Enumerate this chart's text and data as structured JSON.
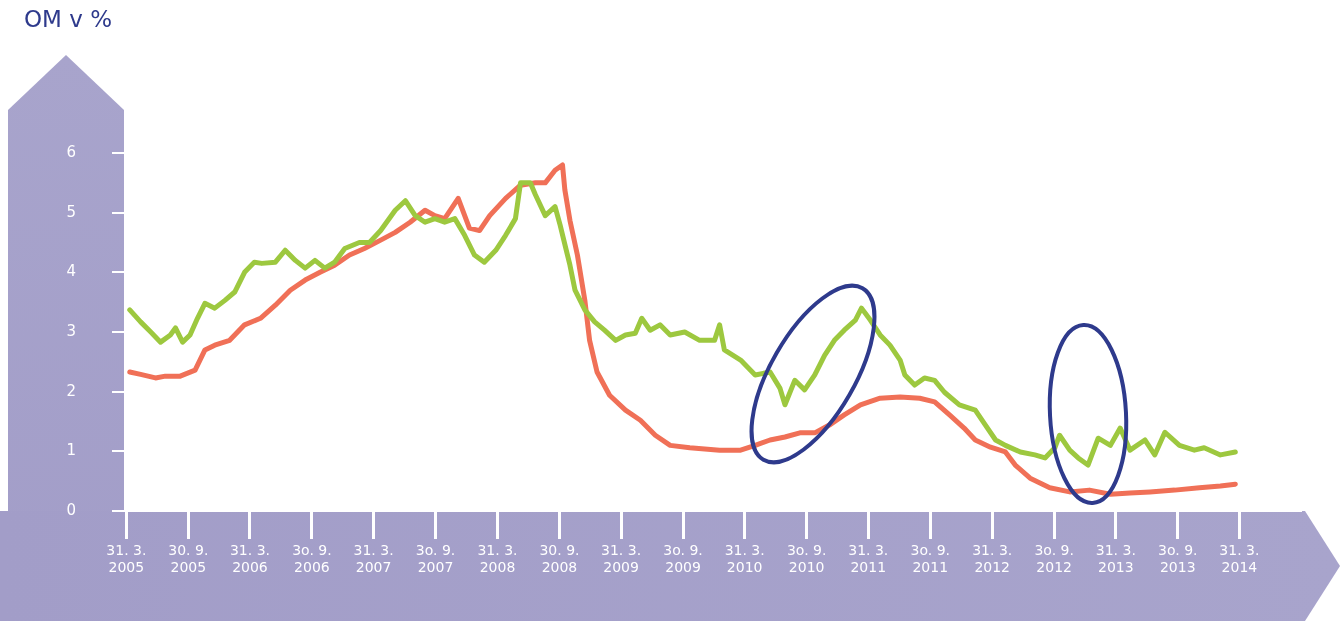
{
  "chart_data": {
    "type": "line",
    "ylabel": "OM v %",
    "xlim": [
      "2005-03-24",
      "2014-09-26"
    ],
    "ylim": [
      0,
      6
    ],
    "xticks": [
      {
        "value": "2005-03-31",
        "label": "31. 3. 2005"
      },
      {
        "value": "2005-09-30",
        "label": "30. 9. 2005"
      },
      {
        "value": "2006-03-31",
        "label": "31. 3. 2006"
      },
      {
        "value": "2006-09-30",
        "label": "3o. 9. 2006"
      },
      {
        "value": "2007-03-31",
        "label": "31. 3. 2007"
      },
      {
        "value": "2007-09-30",
        "label": "3o. 9. 2007"
      },
      {
        "value": "2008-03-31",
        "label": "31. 3. 2008"
      },
      {
        "value": "2008-09-30",
        "label": "30. 9. 2008"
      },
      {
        "value": "2009-03-31",
        "label": "31. 3. 2009"
      },
      {
        "value": "2009-09-30",
        "label": "3o. 9. 2009"
      },
      {
        "value": "2010-03-31",
        "label": "31. 3. 2010"
      },
      {
        "value": "2010-09-30",
        "label": "3o. 9. 2010"
      },
      {
        "value": "2011-03-31",
        "label": "31. 3. 2011"
      },
      {
        "value": "2011-09-30",
        "label": "3o. 9. 2011"
      },
      {
        "value": "2012-03-31",
        "label": "31. 3. 2012"
      },
      {
        "value": "2012-09-30",
        "label": "3o. 9. 2012"
      },
      {
        "value": "2013-03-31",
        "label": "31. 3. 2013"
      },
      {
        "value": "2013-09-30",
        "label": "3o. 9. 2013"
      },
      {
        "value": "2014-03-31",
        "label": "31. 3. 2014"
      }
    ],
    "yticks": [
      0,
      1,
      2,
      3,
      4,
      5,
      6
    ],
    "series": [
      {
        "color": "#9dc83f",
        "x": [
          "2005-04-10",
          "2005-05-12",
          "2005-06-11",
          "2005-07-10",
          "2005-08-08",
          "2005-08-23",
          "2005-09-13",
          "2005-10-05",
          "2005-10-27",
          "2005-11-18",
          "2005-12-17",
          "2006-01-16",
          "2006-02-14",
          "2006-03-15",
          "2006-04-13",
          "2006-05-05",
          "2006-06-14",
          "2006-07-13",
          "2006-08-12",
          "2006-09-10",
          "2006-10-09",
          "2006-11-07",
          "2006-12-06",
          "2007-01-05",
          "2007-02-17",
          "2007-03-19",
          "2007-04-21",
          "2007-06-03",
          "2007-07-03",
          "2007-08-01",
          "2007-08-30",
          "2007-09-28",
          "2007-10-27",
          "2007-11-26",
          "2007-12-25",
          "2008-01-23",
          "2008-02-21",
          "2008-03-26",
          "2008-04-24",
          "2008-05-23",
          "2008-06-07",
          "2008-07-06",
          "2008-07-21",
          "2008-08-19",
          "2008-09-17",
          "2008-10-02",
          "2008-10-31",
          "2008-11-15",
          "2008-12-14",
          "2009-01-12",
          "2009-02-10",
          "2009-03-15",
          "2009-04-13",
          "2009-05-12",
          "2009-05-31",
          "2009-06-25",
          "2009-07-24",
          "2009-08-23",
          "2009-10-05",
          "2009-11-18",
          "2010-01-01",
          "2010-01-16",
          "2010-01-30",
          "2010-03-19",
          "2010-05-01",
          "2010-06-14",
          "2010-07-13",
          "2010-07-28",
          "2010-08-26",
          "2010-09-24",
          "2010-10-24",
          "2010-11-22",
          "2010-12-21",
          "2011-01-19",
          "2011-02-21",
          "2011-03-11",
          "2011-04-06",
          "2011-05-05",
          "2011-06-03",
          "2011-07-03",
          "2011-07-17",
          "2011-08-15",
          "2011-09-13",
          "2011-10-13",
          "2011-11-11",
          "2011-12-25",
          "2012-02-10",
          "2012-03-11",
          "2012-04-10",
          "2012-05-09",
          "2012-06-22",
          "2012-08-04",
          "2012-09-03",
          "2012-10-02",
          "2012-10-16",
          "2012-11-15",
          "2012-12-10",
          "2013-01-08",
          "2013-02-07",
          "2013-03-15",
          "2013-04-13",
          "2013-05-12",
          "2013-06-25",
          "2013-07-24",
          "2013-08-23",
          "2013-10-05",
          "2013-11-18",
          "2013-12-17",
          "2014-02-03",
          "2014-03-19"
        ],
        "values": [
          3.37,
          3.17,
          3.0,
          2.83,
          2.95,
          3.07,
          2.83,
          2.95,
          3.23,
          3.48,
          3.4,
          3.53,
          3.67,
          4.0,
          4.17,
          4.15,
          4.17,
          4.37,
          4.2,
          4.07,
          4.2,
          4.07,
          4.17,
          4.4,
          4.5,
          4.5,
          4.7,
          5.04,
          5.2,
          4.95,
          4.84,
          4.9,
          4.84,
          4.9,
          4.62,
          4.29,
          4.17,
          4.37,
          4.62,
          4.9,
          5.5,
          5.5,
          5.3,
          4.95,
          5.1,
          4.79,
          4.12,
          3.7,
          3.37,
          3.17,
          3.03,
          2.86,
          2.95,
          2.98,
          3.23,
          3.03,
          3.12,
          2.95,
          3.0,
          2.86,
          2.86,
          3.12,
          2.7,
          2.53,
          2.28,
          2.33,
          2.06,
          1.78,
          2.19,
          2.03,
          2.28,
          2.61,
          2.86,
          3.03,
          3.2,
          3.4,
          3.2,
          2.95,
          2.78,
          2.53,
          2.28,
          2.11,
          2.23,
          2.19,
          1.99,
          1.78,
          1.69,
          1.44,
          1.19,
          1.1,
          0.99,
          0.94,
          0.89,
          1.06,
          1.27,
          1.02,
          0.89,
          0.77,
          1.22,
          1.1,
          1.39,
          1.02,
          1.19,
          0.94,
          1.32,
          1.1,
          1.02,
          1.06,
          0.94,
          0.99
        ]
      },
      {
        "color": "#f07057",
        "x": [
          "2005-04-10",
          "2005-05-12",
          "2005-06-25",
          "2005-07-24",
          "2005-09-06",
          "2005-10-20",
          "2005-11-18",
          "2005-12-17",
          "2006-01-30",
          "2006-03-15",
          "2006-05-01",
          "2006-06-14",
          "2006-07-28",
          "2006-09-10",
          "2006-10-24",
          "2006-12-06",
          "2007-01-19",
          "2007-03-04",
          "2007-04-21",
          "2007-06-03",
          "2007-07-17",
          "2007-08-30",
          "2007-09-28",
          "2007-10-27",
          "2007-12-06",
          "2008-01-08",
          "2008-02-07",
          "2008-03-08",
          "2008-04-24",
          "2008-06-07",
          "2008-07-21",
          "2008-08-19",
          "2008-09-17",
          "2008-10-09",
          "2008-10-16",
          "2008-10-31",
          "2008-11-22",
          "2008-12-14",
          "2008-12-28",
          "2009-01-19",
          "2009-02-25",
          "2009-04-13",
          "2009-05-27",
          "2009-07-10",
          "2009-08-23",
          "2009-10-20",
          "2010-01-16",
          "2010-03-19",
          "2010-05-01",
          "2010-06-14",
          "2010-07-28",
          "2010-09-10",
          "2010-10-24",
          "2010-12-06",
          "2011-01-19",
          "2011-03-08",
          "2011-05-05",
          "2011-07-03",
          "2011-08-30",
          "2011-10-13",
          "2011-11-26",
          "2012-01-08",
          "2012-02-10",
          "2012-03-26",
          "2012-05-09",
          "2012-06-07",
          "2012-07-21",
          "2012-09-17",
          "2012-11-15",
          "2013-01-12",
          "2013-03-15",
          "2013-05-12",
          "2013-07-10",
          "2013-09-21",
          "2013-12-03",
          "2014-02-03",
          "2014-03-19"
        ],
        "values": [
          2.33,
          2.29,
          2.23,
          2.26,
          2.26,
          2.36,
          2.7,
          2.78,
          2.86,
          3.12,
          3.23,
          3.45,
          3.7,
          3.87,
          4.0,
          4.12,
          4.29,
          4.4,
          4.54,
          4.67,
          4.84,
          5.04,
          4.95,
          4.9,
          5.24,
          4.74,
          4.7,
          4.95,
          5.24,
          5.46,
          5.5,
          5.5,
          5.71,
          5.8,
          5.38,
          4.87,
          4.29,
          3.53,
          2.86,
          2.33,
          1.94,
          1.69,
          1.52,
          1.27,
          1.1,
          1.06,
          1.02,
          1.02,
          1.1,
          1.19,
          1.24,
          1.31,
          1.31,
          1.44,
          1.61,
          1.78,
          1.89,
          1.91,
          1.89,
          1.83,
          1.61,
          1.39,
          1.19,
          1.07,
          0.99,
          0.77,
          0.55,
          0.39,
          0.32,
          0.35,
          0.28,
          0.3,
          0.32,
          0.35,
          0.39,
          0.42,
          0.45
        ]
      }
    ]
  }
}
